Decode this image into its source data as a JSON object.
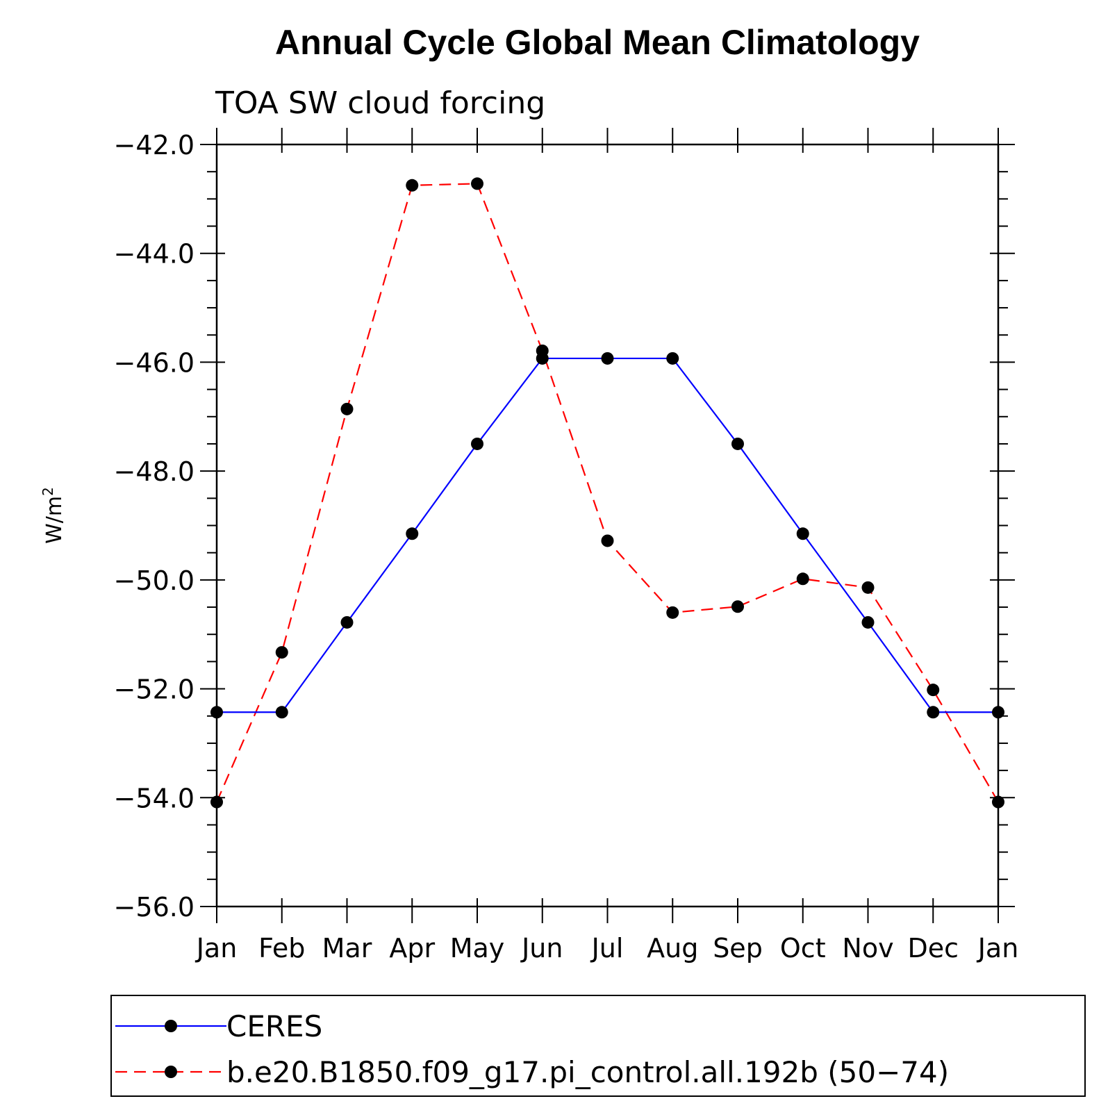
{
  "chart_data": {
    "type": "line",
    "title": "Annual Cycle Global Mean Climatology",
    "subtitle": "TOA SW cloud forcing",
    "ylabel": "W/m",
    "ylabel_superscript": "2",
    "xlabel": "",
    "categories": [
      "Jan",
      "Feb",
      "Mar",
      "Apr",
      "May",
      "Jun",
      "Jul",
      "Aug",
      "Sep",
      "Oct",
      "Nov",
      "Dec",
      "Jan"
    ],
    "ylim": [
      -56.0,
      -42.0
    ],
    "yticks": [
      -42.0,
      -44.0,
      -46.0,
      -48.0,
      -50.0,
      -52.0,
      -54.0,
      -56.0
    ],
    "ytick_labels": [
      "−42.0",
      "−44.0",
      "−46.0",
      "−48.0",
      "−50.0",
      "−52.0",
      "−54.0",
      "−56.0"
    ],
    "series": [
      {
        "name": "CERES",
        "color": "#0000ff",
        "dash": "solid",
        "marker_color": "#000000",
        "values": [
          -52.43,
          -52.43,
          -50.78,
          -49.15,
          -47.5,
          -45.93,
          -45.93,
          -45.93,
          -47.5,
          -49.15,
          -50.78,
          -52.43,
          -52.43
        ]
      },
      {
        "name": "b.e20.B1850.f09_g17.pi_control.all.192b (50−74)",
        "color": "#ff0000",
        "dash": "dashed",
        "marker_color": "#000000",
        "values": [
          -54.08,
          -51.33,
          -46.86,
          -42.75,
          -42.72,
          -45.79,
          -49.28,
          -50.6,
          -50.49,
          -49.98,
          -50.14,
          -52.02,
          -54.08
        ]
      }
    ],
    "legend_position": "bottom"
  }
}
